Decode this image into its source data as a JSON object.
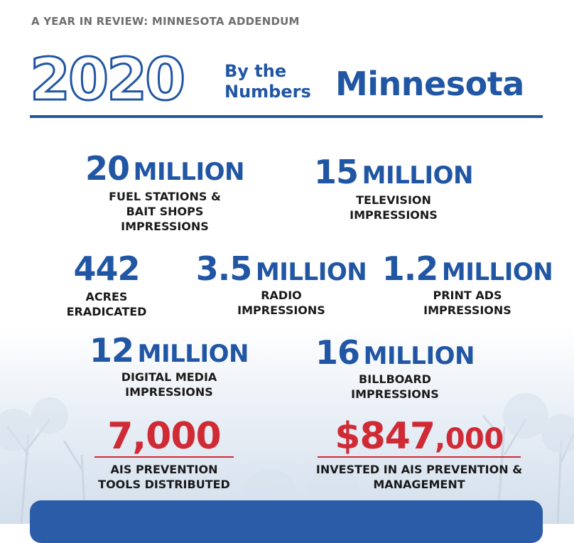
{
  "header": {
    "kicker": "A YEAR IN REVIEW: MINNESOTA ADDENDUM",
    "year": "2020",
    "by_the_line1": "By the",
    "by_the_line2": "Numbers",
    "state": "Minnesota"
  },
  "colors": {
    "blue": "#2156a5",
    "red": "#d02a35",
    "label": "#1a1a1a",
    "kicker": "#6f6f6f"
  },
  "stats": {
    "fuel": {
      "value": "20",
      "unit": "MILLION",
      "label1": "FUEL STATIONS &",
      "label2": "BAIT SHOPS",
      "label3": "IMPRESSIONS"
    },
    "tv": {
      "value": "15",
      "unit": "MILLION",
      "label1": "TELEVISION",
      "label2": "IMPRESSIONS"
    },
    "acres": {
      "value": "442",
      "label1": "ACRES",
      "label2": "ERADICATED"
    },
    "radio": {
      "value": "3.5",
      "unit": "MILLION",
      "label1": "RADIO",
      "label2": "IMPRESSIONS"
    },
    "print": {
      "value": "1.2",
      "unit": "MILLION",
      "label1": "PRINT ADS",
      "label2": "IMPRESSIONS"
    },
    "digital": {
      "value": "12",
      "unit": "MILLION",
      "label1": "DIGITAL MEDIA",
      "label2": "IMPRESSIONS"
    },
    "billboard": {
      "value": "16",
      "unit": "MILLION",
      "label1": "BILLBOARD",
      "label2": "IMPRESSIONS"
    },
    "tools": {
      "value": "7,000",
      "label1": "AIS PREVENTION",
      "label2": "TOOLS DISTRIBUTED"
    },
    "invested": {
      "value": "$847",
      "unit": ",000",
      "label1": "INVESTED IN AIS PREVENTION &",
      "label2": "MANAGEMENT"
    }
  }
}
